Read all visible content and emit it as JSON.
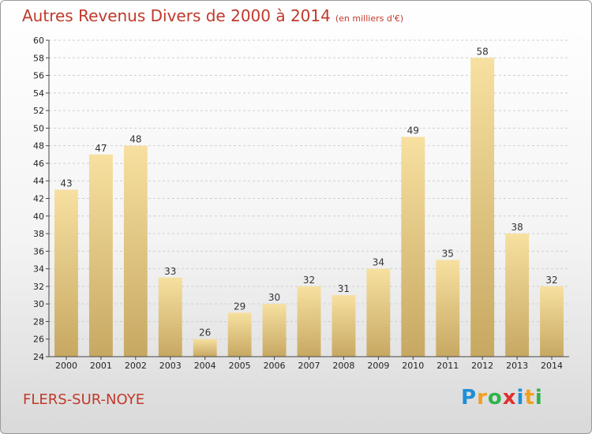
{
  "title": "Autres Revenus Divers de 2000 à 2014",
  "unit": "(en milliers d'€)",
  "commune": "FLERS-SUR-NOYE",
  "logo": {
    "letters": [
      "P",
      "r",
      "o",
      "x",
      "i",
      "t",
      "i"
    ],
    "colors": [
      "#1f8fd6",
      "#f0a020",
      "#2db34a",
      "#e03030",
      "#1f8fd6",
      "#f0a020",
      "#2db34a"
    ]
  },
  "colors": {
    "title": "#c0392b",
    "bar_light": "#f7e0a0",
    "bar_dark": "#c7a862",
    "grid": "#cfcfcf",
    "axis": "#444444"
  },
  "chart_data": {
    "type": "bar",
    "categories": [
      "2000",
      "2001",
      "2002",
      "2003",
      "2004",
      "2005",
      "2006",
      "2007",
      "2008",
      "2009",
      "2010",
      "2011",
      "2012",
      "2013",
      "2014"
    ],
    "values": [
      43,
      47,
      48,
      33,
      26,
      29,
      30,
      32,
      31,
      34,
      49,
      35,
      58,
      38,
      32
    ],
    "title": "Autres Revenus Divers de 2000 à 2014",
    "xlabel": "",
    "ylabel": "",
    "ylim": [
      24,
      60
    ],
    "yticks": [
      24,
      26,
      28,
      30,
      32,
      34,
      36,
      38,
      40,
      42,
      44,
      46,
      48,
      50,
      52,
      54,
      56,
      58,
      60
    ],
    "grid": true
  }
}
